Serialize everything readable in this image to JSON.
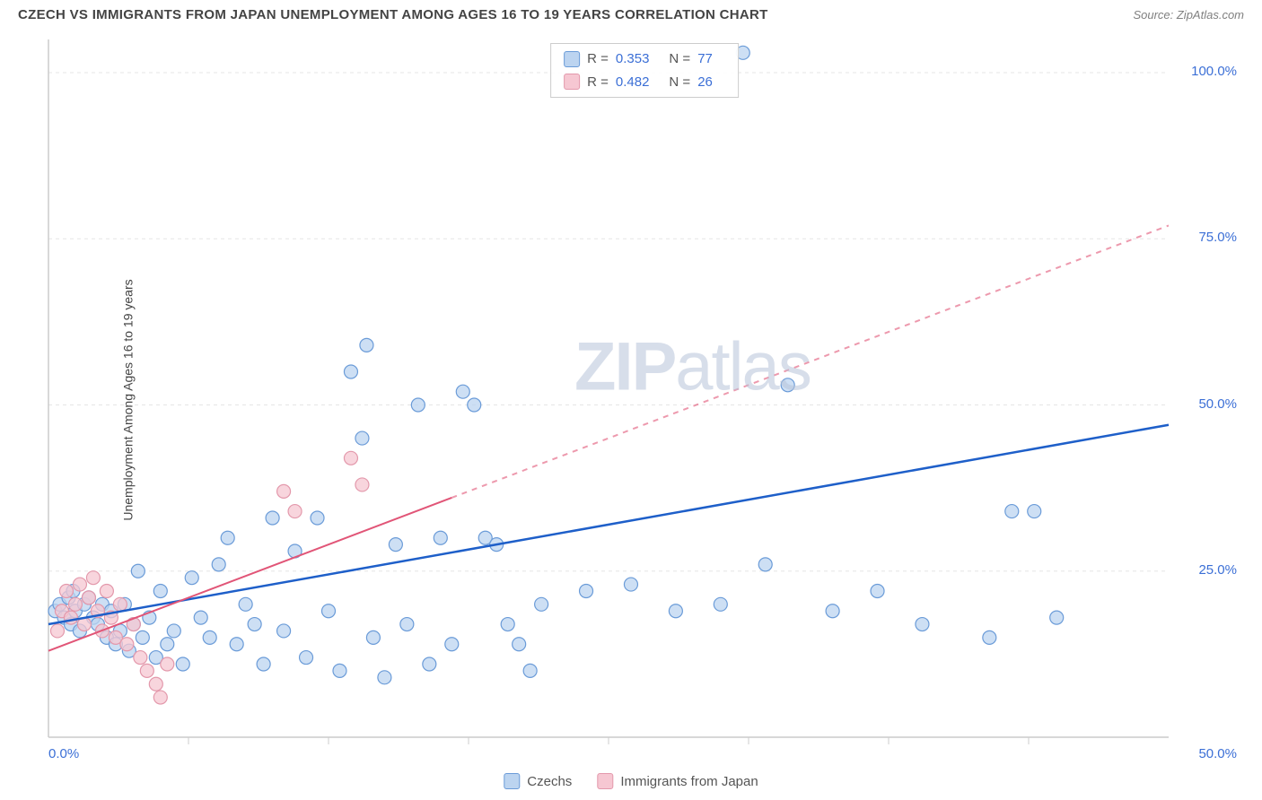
{
  "title": "CZECH VS IMMIGRANTS FROM JAPAN UNEMPLOYMENT AMONG AGES 16 TO 19 YEARS CORRELATION CHART",
  "source": "Source: ZipAtlas.com",
  "y_axis_label": "Unemployment Among Ages 16 to 19 years",
  "watermark_bold": "ZIP",
  "watermark_light": "atlas",
  "chart": {
    "type": "scatter",
    "xlim": [
      0,
      50
    ],
    "ylim": [
      0,
      105
    ],
    "x_ticks": [
      0,
      50
    ],
    "x_tick_labels": [
      "0.0%",
      "50.0%"
    ],
    "x_minor_ticks": [
      6.25,
      12.5,
      18.75,
      25,
      31.25,
      37.5,
      43.75
    ],
    "y_ticks": [
      25,
      50,
      75,
      100
    ],
    "y_tick_labels": [
      "25.0%",
      "50.0%",
      "75.0%",
      "100.0%"
    ],
    "background_color": "#ffffff",
    "grid_color": "#e5e5e5",
    "axis_color": "#cccccc",
    "marker_radius": 7.5,
    "marker_stroke_width": 1.2,
    "series": [
      {
        "name": "Czechs",
        "fill": "#bcd4f0",
        "stroke": "#6a9bd8",
        "r_label": "R = ",
        "r_value": "0.353",
        "n_label": "N = ",
        "n_value": "77",
        "trend": {
          "color": "#1e5fc9",
          "width": 2.5,
          "x1": 0,
          "y1": 17,
          "x2": 50,
          "y2": 47,
          "dash_after_x": null
        },
        "points": [
          [
            0.3,
            19
          ],
          [
            0.5,
            20
          ],
          [
            0.7,
            18
          ],
          [
            0.9,
            21
          ],
          [
            1.0,
            17
          ],
          [
            1.1,
            22
          ],
          [
            1.2,
            19
          ],
          [
            1.4,
            16
          ],
          [
            1.6,
            20
          ],
          [
            1.8,
            21
          ],
          [
            2.0,
            18
          ],
          [
            2.2,
            17
          ],
          [
            2.4,
            20
          ],
          [
            2.6,
            15
          ],
          [
            2.8,
            19
          ],
          [
            3.0,
            14
          ],
          [
            3.2,
            16
          ],
          [
            3.4,
            20
          ],
          [
            3.6,
            13
          ],
          [
            3.8,
            17
          ],
          [
            4.0,
            25
          ],
          [
            4.2,
            15
          ],
          [
            4.5,
            18
          ],
          [
            4.8,
            12
          ],
          [
            5.0,
            22
          ],
          [
            5.3,
            14
          ],
          [
            5.6,
            16
          ],
          [
            6.0,
            11
          ],
          [
            6.4,
            24
          ],
          [
            6.8,
            18
          ],
          [
            7.2,
            15
          ],
          [
            7.6,
            26
          ],
          [
            8.0,
            30
          ],
          [
            8.4,
            14
          ],
          [
            8.8,
            20
          ],
          [
            9.2,
            17
          ],
          [
            9.6,
            11
          ],
          [
            10.0,
            33
          ],
          [
            10.5,
            16
          ],
          [
            11.0,
            28
          ],
          [
            11.5,
            12
          ],
          [
            12.0,
            33
          ],
          [
            12.5,
            19
          ],
          [
            13.0,
            10
          ],
          [
            13.5,
            55
          ],
          [
            14.0,
            45
          ],
          [
            14.2,
            59
          ],
          [
            14.5,
            15
          ],
          [
            15.0,
            9
          ],
          [
            15.5,
            29
          ],
          [
            16.0,
            17
          ],
          [
            16.5,
            50
          ],
          [
            17.0,
            11
          ],
          [
            17.5,
            30
          ],
          [
            18.0,
            14
          ],
          [
            18.5,
            52
          ],
          [
            19.0,
            50
          ],
          [
            19.5,
            30
          ],
          [
            20.0,
            29
          ],
          [
            20.5,
            17
          ],
          [
            21.0,
            14
          ],
          [
            21.5,
            10
          ],
          [
            22.0,
            20
          ],
          [
            24.0,
            22
          ],
          [
            26.0,
            23
          ],
          [
            28.0,
            19
          ],
          [
            30.0,
            20
          ],
          [
            31.0,
            103
          ],
          [
            32.0,
            26
          ],
          [
            33.0,
            53
          ],
          [
            35.0,
            19
          ],
          [
            37.0,
            22
          ],
          [
            39.0,
            17
          ],
          [
            42.0,
            15
          ],
          [
            43.0,
            34
          ],
          [
            44.0,
            34
          ],
          [
            45.0,
            18
          ]
        ]
      },
      {
        "name": "Immigrants from Japan",
        "fill": "#f6c7d2",
        "stroke": "#e398ab",
        "r_label": "R = ",
        "r_value": "0.482",
        "n_label": "N = ",
        "n_value": "26",
        "trend": {
          "color": "#e15577",
          "width": 2,
          "x1": 0,
          "y1": 13,
          "x2": 50,
          "y2": 77,
          "dash_after_x": 18
        },
        "points": [
          [
            0.4,
            16
          ],
          [
            0.6,
            19
          ],
          [
            0.8,
            22
          ],
          [
            1.0,
            18
          ],
          [
            1.2,
            20
          ],
          [
            1.4,
            23
          ],
          [
            1.6,
            17
          ],
          [
            1.8,
            21
          ],
          [
            2.0,
            24
          ],
          [
            2.2,
            19
          ],
          [
            2.4,
            16
          ],
          [
            2.6,
            22
          ],
          [
            2.8,
            18
          ],
          [
            3.0,
            15
          ],
          [
            3.2,
            20
          ],
          [
            3.5,
            14
          ],
          [
            3.8,
            17
          ],
          [
            4.1,
            12
          ],
          [
            4.4,
            10
          ],
          [
            4.8,
            8
          ],
          [
            5.0,
            6
          ],
          [
            5.3,
            11
          ],
          [
            10.5,
            37
          ],
          [
            11.0,
            34
          ],
          [
            13.5,
            42
          ],
          [
            14.0,
            38
          ]
        ]
      }
    ]
  },
  "legend": {
    "series1_label": "Czechs",
    "series2_label": "Immigrants from Japan"
  }
}
